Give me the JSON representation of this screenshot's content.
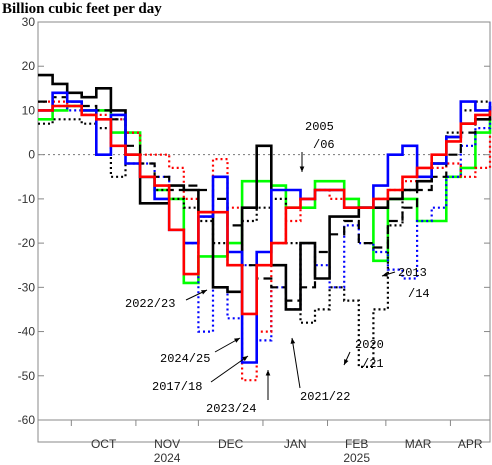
{
  "chart_data": {
    "type": "line",
    "title": "Billion cubic feet per day",
    "ylim": [
      -60,
      30
    ],
    "yticks": [
      30,
      20,
      10,
      0,
      -10,
      -20,
      -30,
      -40,
      -50,
      -60
    ],
    "ytick_labels": [
      "30",
      "20",
      "10",
      "0",
      "-10",
      "-20",
      "-30",
      "-40",
      "-50",
      "-60"
    ],
    "x_axis": {
      "start": "2024-09-15",
      "end": "2025-04-20",
      "months": [
        {
          "label": "OCT",
          "date": "2024-10-01"
        },
        {
          "label": "NOV",
          "date": "2024-11-01"
        },
        {
          "label": "DEC",
          "date": "2024-12-01"
        },
        {
          "label": "JAN",
          "date": "2025-01-01"
        },
        {
          "label": "FEB",
          "date": "2025-02-01"
        },
        {
          "label": "MAR",
          "date": "2025-03-01"
        },
        {
          "label": "APR",
          "date": "2025-04-01"
        }
      ],
      "year_labels": [
        {
          "label": "2024",
          "date": "2024-11-01"
        },
        {
          "label": "2025",
          "date": "2025-02-01"
        }
      ],
      "boundaries": [
        "2024-10-01",
        "2024-11-01",
        "2024-12-01",
        "2025-01-01",
        "2025-02-01",
        "2025-03-01",
        "2025-04-01"
      ]
    },
    "grid": false,
    "zero_line": true,
    "series": [
      {
        "name": "2005/06",
        "color": "#00ff00",
        "style": "solid",
        "width": 2.6,
        "x": [
          "2024-09-15",
          "2024-09-22",
          "2024-09-29",
          "2024-10-06",
          "2024-10-13",
          "2024-10-20",
          "2024-10-27",
          "2024-11-03",
          "2024-11-10",
          "2024-11-17",
          "2024-11-24",
          "2024-12-01",
          "2024-12-08",
          "2024-12-15",
          "2024-12-22",
          "2024-12-29",
          "2025-01-05",
          "2025-01-12",
          "2025-01-19",
          "2025-01-26",
          "2025-02-02",
          "2025-02-09",
          "2025-02-16",
          "2025-02-23",
          "2025-03-02",
          "2025-03-09",
          "2025-03-16",
          "2025-03-23",
          "2025-03-30",
          "2025-04-06",
          "2025-04-13",
          "2025-04-20"
        ],
        "y": [
          8,
          10,
          11,
          10,
          10,
          5,
          5,
          -5,
          -8,
          -10,
          -29,
          -23,
          -23,
          -20,
          -6,
          -6,
          -7,
          -12,
          -12,
          -6,
          -6,
          -10,
          -12,
          -24,
          -10,
          -10,
          -15,
          -15,
          -5,
          -3,
          5,
          8
        ]
      },
      {
        "name": "2013/14",
        "color": "#0000ff",
        "style": "dotted",
        "width": 2.2,
        "x": [
          "2024-09-15",
          "2024-09-22",
          "2024-09-29",
          "2024-10-06",
          "2024-10-13",
          "2024-10-20",
          "2024-10-27",
          "2024-11-03",
          "2024-11-10",
          "2024-11-17",
          "2024-11-24",
          "2024-12-01",
          "2024-12-08",
          "2024-12-15",
          "2024-12-22",
          "2024-12-29",
          "2025-01-05",
          "2025-01-12",
          "2025-01-19",
          "2025-01-26",
          "2025-02-02",
          "2025-02-09",
          "2025-02-16",
          "2025-02-23",
          "2025-03-02",
          "2025-03-09",
          "2025-03-16",
          "2025-03-23",
          "2025-03-30",
          "2025-04-06",
          "2025-04-13",
          "2025-04-20"
        ],
        "y": [
          10,
          11,
          10,
          9,
          8,
          8,
          5,
          -2,
          -5,
          -17,
          -20,
          -40,
          -30,
          -37,
          -25,
          -42,
          -30,
          -35,
          -20,
          -25,
          -30,
          -16,
          -20,
          -22,
          -26,
          -28,
          -15,
          -12,
          -5,
          2,
          6,
          10
        ]
      },
      {
        "name": "2017/18",
        "color": "#ff0000",
        "style": "dotted",
        "width": 2.2,
        "x": [
          "2024-09-15",
          "2024-09-22",
          "2024-09-29",
          "2024-10-06",
          "2024-10-13",
          "2024-10-20",
          "2024-10-27",
          "2024-11-03",
          "2024-11-10",
          "2024-11-17",
          "2024-11-24",
          "2024-12-01",
          "2024-12-08",
          "2024-12-15",
          "2024-12-22",
          "2024-12-29",
          "2025-01-05",
          "2025-01-12",
          "2025-01-19",
          "2025-01-26",
          "2025-02-02",
          "2025-02-09",
          "2025-02-16",
          "2025-02-23",
          "2025-03-02",
          "2025-03-09",
          "2025-03-16",
          "2025-03-23",
          "2025-03-30",
          "2025-04-06",
          "2025-04-13",
          "2025-04-20"
        ],
        "y": [
          12,
          12,
          11,
          10,
          9,
          8,
          5,
          0,
          0,
          -3,
          -10,
          -14,
          -1,
          -12,
          -51,
          -40,
          -20,
          -15,
          -10,
          -8,
          -10,
          -12,
          -12,
          -10,
          -8,
          -6,
          -5,
          -3,
          -2,
          -5,
          -3,
          5
        ]
      },
      {
        "name": "2020/21",
        "color": "#000000",
        "style": "dotted",
        "width": 2.2,
        "x": [
          "2024-09-15",
          "2024-09-22",
          "2024-09-29",
          "2024-10-06",
          "2024-10-13",
          "2024-10-20",
          "2024-10-27",
          "2024-11-03",
          "2024-11-10",
          "2024-11-17",
          "2024-11-24",
          "2024-12-01",
          "2024-12-08",
          "2024-12-15",
          "2024-12-22",
          "2024-12-29",
          "2025-01-05",
          "2025-01-12",
          "2025-01-19",
          "2025-01-26",
          "2025-02-02",
          "2025-02-09",
          "2025-02-16",
          "2025-02-23",
          "2025-03-02",
          "2025-03-09",
          "2025-03-16",
          "2025-03-23",
          "2025-03-30",
          "2025-04-06",
          "2025-04-13",
          "2025-04-20"
        ],
        "y": [
          7,
          8,
          8,
          7,
          6,
          -5,
          -2,
          -5,
          -8,
          -10,
          -12,
          -15,
          -20,
          -25,
          -15,
          -12,
          -10,
          -20,
          -38,
          -35,
          -30,
          -33,
          -48,
          -35,
          -16,
          -8,
          -5,
          -2,
          5,
          10,
          12,
          12
        ]
      },
      {
        "name": "2021/22",
        "color": "#000000",
        "style": "dashed",
        "width": 2.2,
        "x": [
          "2024-09-15",
          "2024-09-22",
          "2024-09-29",
          "2024-10-06",
          "2024-10-13",
          "2024-10-20",
          "2024-10-27",
          "2024-11-03",
          "2024-11-10",
          "2024-11-17",
          "2024-11-24",
          "2024-12-01",
          "2024-12-08",
          "2024-12-15",
          "2024-12-22",
          "2024-12-29",
          "2025-01-05",
          "2025-01-12",
          "2025-01-19",
          "2025-01-26",
          "2025-02-02",
          "2025-02-09",
          "2025-02-16",
          "2025-02-23",
          "2025-03-02",
          "2025-03-09",
          "2025-03-16",
          "2025-03-23",
          "2025-03-30",
          "2025-04-06",
          "2025-04-13",
          "2025-04-20"
        ],
        "y": [
          12,
          13,
          12,
          11,
          10,
          8,
          2,
          -2,
          -5,
          -8,
          -7,
          -8,
          -10,
          -16,
          -25,
          -28,
          -30,
          -33,
          -30,
          -22,
          -18,
          -15,
          -20,
          -21,
          -15,
          -12,
          -8,
          -5,
          0,
          5,
          8,
          10
        ]
      },
      {
        "name": "2022/23",
        "color": "#000000",
        "style": "solid",
        "width": 2.6,
        "x": [
          "2024-09-15",
          "2024-09-22",
          "2024-09-29",
          "2024-10-06",
          "2024-10-13",
          "2024-10-20",
          "2024-10-27",
          "2024-11-03",
          "2024-11-10",
          "2024-11-17",
          "2024-11-24",
          "2024-12-01",
          "2024-12-08",
          "2024-12-15",
          "2024-12-22",
          "2024-12-29",
          "2025-01-05",
          "2025-01-12",
          "2025-01-19",
          "2025-01-26",
          "2025-02-02",
          "2025-02-09",
          "2025-02-16",
          "2025-02-23",
          "2025-03-02",
          "2025-03-09",
          "2025-03-16",
          "2025-03-23",
          "2025-03-30",
          "2025-04-06",
          "2025-04-13",
          "2025-04-20"
        ],
        "y": [
          18,
          16,
          14,
          13,
          15,
          10,
          0,
          -11,
          -11,
          -7,
          -8,
          -13,
          -30,
          -31,
          -12,
          2,
          -25,
          -35,
          -20,
          -28,
          -14,
          -14,
          -12,
          -12,
          -10,
          -8,
          -6,
          -2,
          4,
          7,
          8,
          11
        ]
      },
      {
        "name": "2023/24",
        "color": "#0000ff",
        "style": "solid",
        "width": 2.6,
        "x": [
          "2024-09-15",
          "2024-09-22",
          "2024-09-29",
          "2024-10-06",
          "2024-10-13",
          "2024-10-20",
          "2024-10-27",
          "2024-11-03",
          "2024-11-10",
          "2024-11-17",
          "2024-11-24",
          "2024-12-01",
          "2024-12-08",
          "2024-12-15",
          "2024-12-22",
          "2024-12-29",
          "2025-01-05",
          "2025-01-12",
          "2025-01-19",
          "2025-01-26",
          "2025-02-02",
          "2025-02-09",
          "2025-02-16",
          "2025-02-23",
          "2025-03-02",
          "2025-03-09",
          "2025-03-16",
          "2025-03-23",
          "2025-03-30",
          "2025-04-06",
          "2025-04-13",
          "2025-04-20"
        ],
        "y": [
          10,
          14,
          12,
          10,
          0,
          9,
          -2,
          -5,
          -10,
          -17,
          -20,
          -14,
          -5,
          -22,
          -47,
          -22,
          -8,
          -8,
          -10,
          -8,
          -8,
          -12,
          -12,
          -7,
          0,
          2,
          -5,
          -2,
          4,
          12,
          10,
          12
        ]
      },
      {
        "name": "2024/25",
        "color": "#ff0000",
        "style": "solid",
        "width": 2.6,
        "x": [
          "2024-09-15",
          "2024-09-22",
          "2024-09-29",
          "2024-10-06",
          "2024-10-13",
          "2024-10-20",
          "2024-10-27",
          "2024-11-03",
          "2024-11-10",
          "2024-11-17",
          "2024-11-24",
          "2024-12-01",
          "2024-12-08",
          "2024-12-15",
          "2024-12-22",
          "2024-12-29",
          "2025-01-05",
          "2025-01-12",
          "2025-01-19",
          "2025-01-26",
          "2025-02-02",
          "2025-02-09",
          "2025-02-16",
          "2025-02-23",
          "2025-03-02",
          "2025-03-09",
          "2025-03-16",
          "2025-03-23",
          "2025-03-30",
          "2025-04-06",
          "2025-04-13",
          "2025-04-20"
        ],
        "y": [
          10,
          11,
          11,
          9,
          8,
          2,
          0,
          -5,
          -7,
          -17,
          -27,
          -13,
          -13,
          -25,
          -36,
          -25,
          -20,
          -12,
          -10,
          -8,
          -8,
          -12,
          -12,
          -10,
          -8,
          -5,
          -3,
          0,
          3,
          7,
          9,
          10
        ]
      }
    ],
    "annotations": [
      {
        "label": "2005",
        "target": "2005/06"
      },
      {
        "label": "/06",
        "target": "2005/06"
      },
      {
        "label": "2013",
        "target": "2013/14"
      },
      {
        "label": "/14",
        "target": "2013/14"
      },
      {
        "label": "2022/23",
        "target": "2022/23"
      },
      {
        "label": "2024/25",
        "target": "2024/25"
      },
      {
        "label": "2017/18",
        "target": "2017/18"
      },
      {
        "label": "2023/24",
        "target": "2023/24"
      },
      {
        "label": "2020",
        "target": "2020/21"
      },
      {
        "label": "/21",
        "target": "2020/21"
      },
      {
        "label": "2021/22",
        "target": "2021/22"
      }
    ]
  }
}
